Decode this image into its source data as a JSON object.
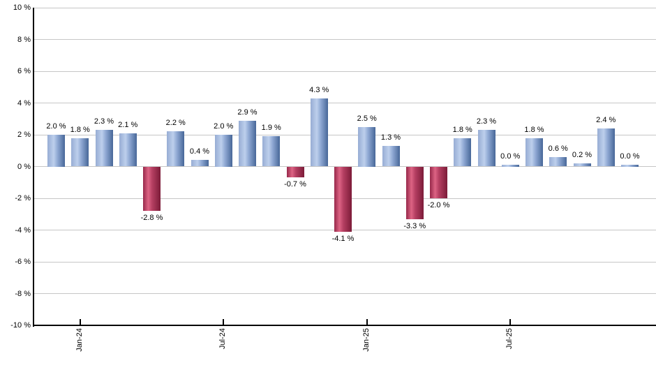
{
  "chart_data": {
    "type": "bar",
    "title": "",
    "xlabel": "",
    "ylabel": "",
    "ylim": [
      -10,
      10
    ],
    "y_tick_step": 2,
    "grid": true,
    "legend": false,
    "y_tick_labels": [
      "10 %",
      "8 %",
      "6 %",
      "4 %",
      "2 %",
      "0 %",
      "-2 %",
      "-4 %",
      "-6 %",
      "-8 %",
      "-10 %"
    ],
    "x_ticks": [
      {
        "label": "Jan-24",
        "bar_index": 1
      },
      {
        "label": "Jul-24",
        "bar_index": 7
      },
      {
        "label": "Jan-25",
        "bar_index": 13
      },
      {
        "label": "Jul-25",
        "bar_index": 19
      }
    ],
    "bars": [
      {
        "value": 2.0,
        "label": "2.0 %"
      },
      {
        "value": 1.8,
        "label": "1.8 %"
      },
      {
        "value": 2.3,
        "label": "2.3 %"
      },
      {
        "value": 2.1,
        "label": "2.1 %"
      },
      {
        "value": -2.8,
        "label": "-2.8 %"
      },
      {
        "value": 2.2,
        "label": "2.2 %"
      },
      {
        "value": 0.4,
        "label": "0.4 %"
      },
      {
        "value": 2.0,
        "label": "2.0 %"
      },
      {
        "value": 2.9,
        "label": "2.9 %"
      },
      {
        "value": 1.9,
        "label": "1.9 %"
      },
      {
        "value": -0.7,
        "label": "-0.7 %"
      },
      {
        "value": 4.3,
        "label": "4.3 %"
      },
      {
        "value": -4.1,
        "label": "-4.1 %"
      },
      {
        "value": 2.5,
        "label": "2.5 %"
      },
      {
        "value": 1.3,
        "label": "1.3 %"
      },
      {
        "value": -3.3,
        "label": "-3.3 %"
      },
      {
        "value": -2.0,
        "label": "-2.0 %"
      },
      {
        "value": 1.8,
        "label": "1.8 %"
      },
      {
        "value": 2.3,
        "label": "2.3 %"
      },
      {
        "value": 0.0,
        "label": "0.0 %"
      },
      {
        "value": 1.8,
        "label": "1.8 %"
      },
      {
        "value": 0.6,
        "label": "0.6 %"
      },
      {
        "value": 0.2,
        "label": "0.2 %"
      },
      {
        "value": 2.4,
        "label": "2.4 %"
      },
      {
        "value": 0.0,
        "label": "0.0 %"
      }
    ],
    "colors": {
      "positive_gradient": [
        "#97add4",
        "#bdcfec",
        "#90a9d4",
        "#476798"
      ],
      "negative_gradient": [
        "#97284a",
        "#dd6484",
        "#b53f62",
        "#7c1b38"
      ],
      "gridline": "#c6c6c6",
      "axis": "#000000",
      "text": "#000000",
      "background": "#ffffff"
    }
  }
}
